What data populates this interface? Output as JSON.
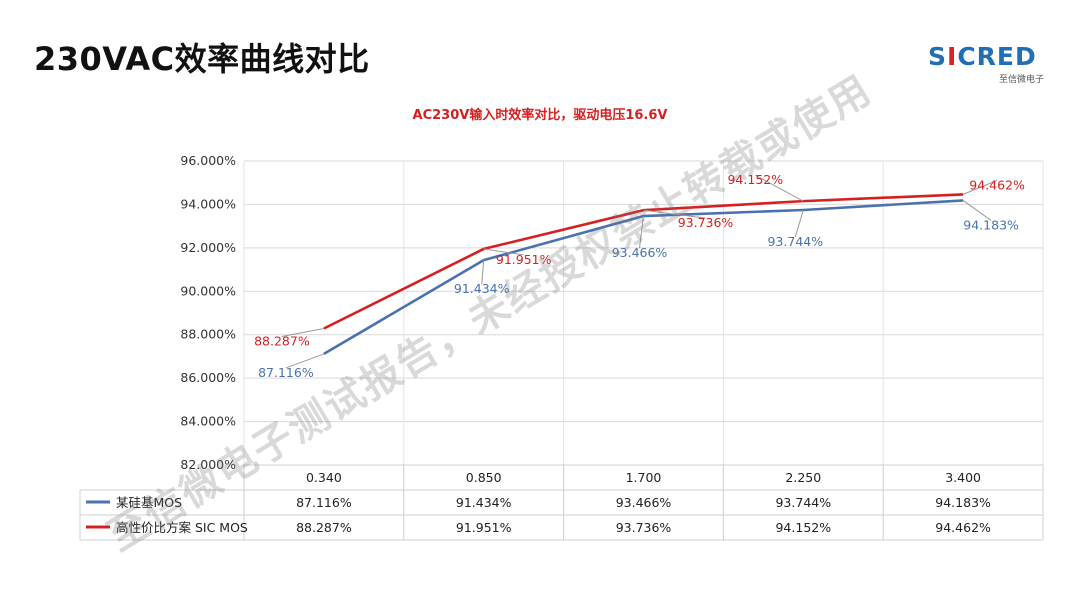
{
  "page": {
    "title": "230VAC效率曲线对比",
    "logo_text": "SICRED",
    "logo_subtitle": "至信微电子",
    "watermark": "至信微电子测试报告，未经授权禁止转载或使用"
  },
  "chart_data": {
    "type": "line",
    "title": "AC230V输入时效率对比，驱动电压16.6V",
    "xlabel": "",
    "ylabel": "",
    "categories": [
      "0.340",
      "0.850",
      "1.700",
      "2.250",
      "3.400"
    ],
    "y_ticks": [
      "82.000%",
      "84.000%",
      "86.000%",
      "88.000%",
      "90.000%",
      "92.000%",
      "94.000%",
      "96.000%"
    ],
    "ylim": [
      82,
      96
    ],
    "grid": true,
    "legend": "data-table",
    "series": [
      {
        "name": "某硅基MOS",
        "color": "#4a72b0",
        "values": [
          87.116,
          91.434,
          93.466,
          93.744,
          94.183
        ],
        "labels": [
          "87.116%",
          "91.434%",
          "93.466%",
          "93.744%",
          "94.183%"
        ]
      },
      {
        "name": "高性价比方案 SIC MOS",
        "color": "#d62020",
        "values": [
          88.287,
          91.951,
          93.736,
          94.152,
          94.462
        ],
        "labels": [
          "88.287%",
          "91.951%",
          "93.736%",
          "94.152%",
          "94.462%"
        ]
      }
    ]
  }
}
